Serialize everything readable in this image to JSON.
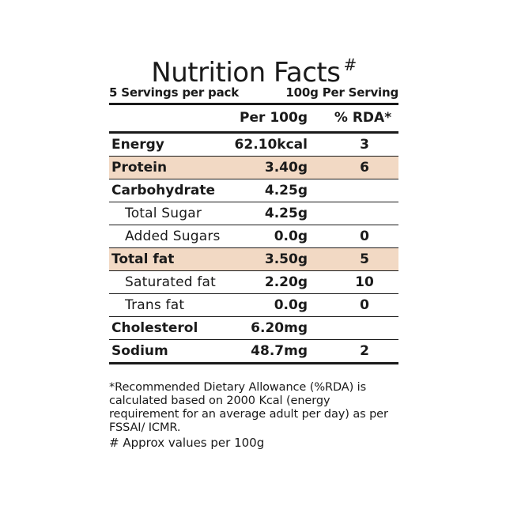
{
  "title": "Nutrition Facts",
  "title_mark": "#",
  "servings_per_pack": "5 Servings per pack",
  "serving_size": "100g Per Serving",
  "columns": {
    "per": "Per 100g",
    "rda": "% RDA*"
  },
  "rows": [
    {
      "name": "Energy",
      "value": "62.10kcal",
      "rda": "3"
    },
    {
      "name": "Protein",
      "value": "3.40g",
      "rda": "6"
    },
    {
      "name": "Carbohydrate",
      "value": "4.25g",
      "rda": ""
    },
    {
      "name": "Total Sugar",
      "value": "4.25g",
      "rda": ""
    },
    {
      "name": "Added Sugars",
      "value": "0.0g",
      "rda": "0"
    },
    {
      "name": "Total fat",
      "value": "3.50g",
      "rda": "5"
    },
    {
      "name": "Saturated fat",
      "value": "2.20g",
      "rda": "10"
    },
    {
      "name": "Trans fat",
      "value": "0.0g",
      "rda": "0"
    },
    {
      "name": "Cholesterol",
      "value": "6.20mg",
      "rda": ""
    },
    {
      "name": "Sodium",
      "value": "48.7mg",
      "rda": "2"
    }
  ],
  "highlight_color": "#f2d9c4",
  "footnote_rda": "*Recommended Dietary Allowance (%RDA) is calculated based on 2000 Kcal (energy requirement for an average adult per day) as per FSSAI/ ICMR.",
  "footnote_approx": "# Approx values per 100g"
}
